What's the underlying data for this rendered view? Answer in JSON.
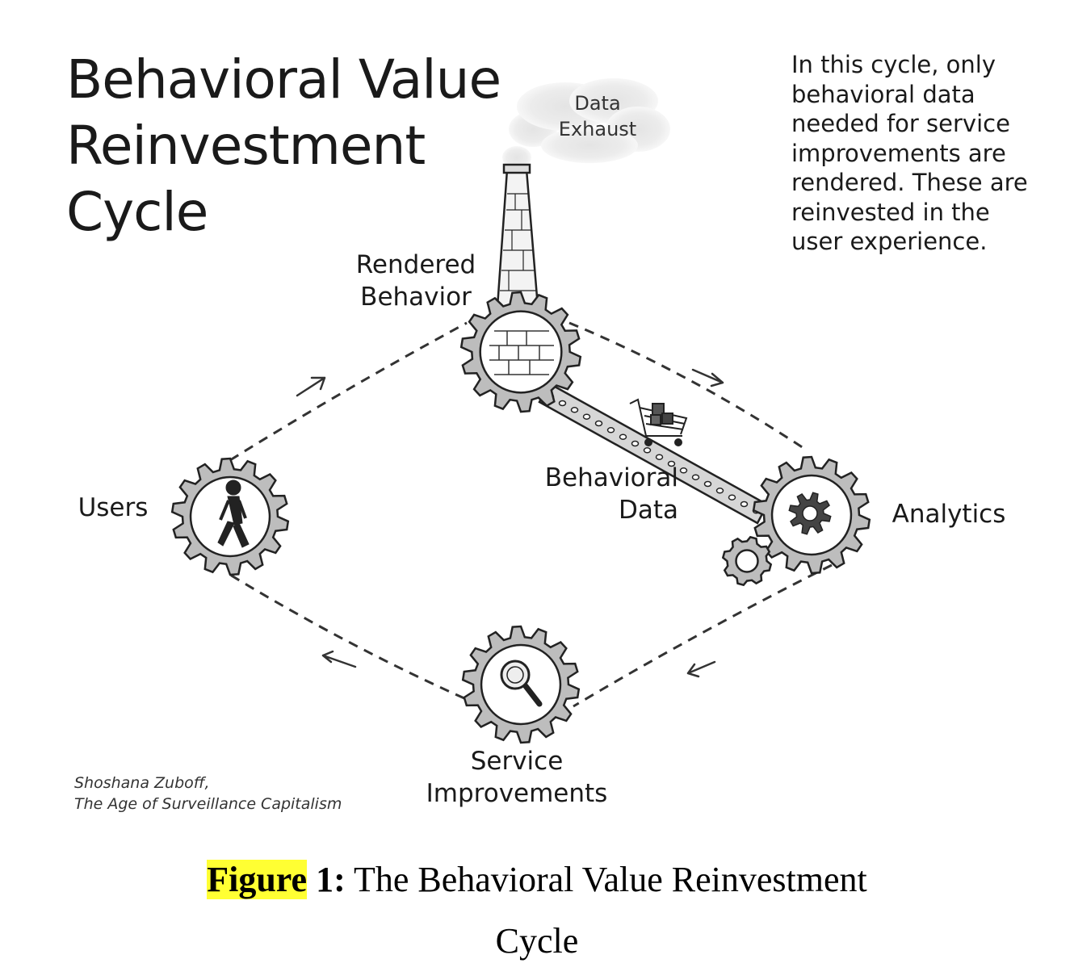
{
  "diagram": {
    "title_lines": [
      "Behavioral Value",
      "Reinvestment",
      "Cycle"
    ],
    "note_lines": [
      "In this cycle, only",
      "behavioral data",
      "needed for service",
      "improvements are",
      "rendered. These are",
      "reinvested in the",
      "user experience."
    ],
    "exhaust_lines": [
      "Data",
      "Exhaust"
    ],
    "nodes": {
      "rendered_behavior": [
        "Rendered",
        "Behavior"
      ],
      "behavioral_data": [
        "Behavioral",
        "Data"
      ],
      "users": "Users",
      "analytics": "Analytics",
      "service_improvements": [
        "Service",
        "Improvements"
      ]
    },
    "credit_lines": [
      "Shoshana Zuboff,",
      "The Age of Surveillance Capitalism"
    ],
    "icons": {
      "users": "walking-person-icon",
      "rendered_behavior": "brick-wall-icon",
      "analytics": "cog-icon",
      "service_improvements": "magnifier-icon",
      "smokestack": "smokestack-icon",
      "cart": "shopping-cart-icon"
    }
  },
  "caption": {
    "figure_word": "Figure",
    "number": "1:",
    "text_line1": "The Behavioral Value Reinvestment",
    "text_line2": "Cycle"
  },
  "colors": {
    "highlight": "#ffff33",
    "ink": "#1a1a1a"
  }
}
